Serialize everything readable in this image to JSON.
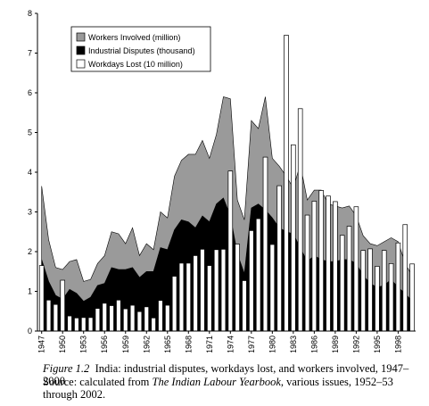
{
  "chart_data": {
    "type": "combo",
    "x": [
      1947,
      1948,
      1949,
      1950,
      1951,
      1952,
      1953,
      1954,
      1955,
      1956,
      1957,
      1958,
      1959,
      1960,
      1961,
      1962,
      1963,
      1964,
      1965,
      1966,
      1967,
      1968,
      1969,
      1970,
      1971,
      1972,
      1973,
      1974,
      1975,
      1976,
      1977,
      1978,
      1979,
      1980,
      1981,
      1982,
      1983,
      1984,
      1985,
      1986,
      1987,
      1988,
      1989,
      1990,
      1991,
      1992,
      1993,
      1994,
      1995,
      1996,
      1997,
      1998,
      1999,
      2000
    ],
    "series": [
      {
        "name": "Workers Involved (million)",
        "mark": "area",
        "color": "#9a9a9a",
        "values": [
          3.65,
          2.3,
          1.6,
          1.55,
          1.75,
          1.8,
          1.25,
          1.3,
          1.7,
          1.9,
          2.5,
          2.45,
          2.2,
          2.6,
          1.9,
          2.2,
          2.05,
          3.0,
          2.85,
          3.9,
          4.3,
          4.45,
          4.45,
          4.8,
          4.35,
          4.95,
          5.9,
          5.85,
          3.3,
          2.8,
          5.3,
          5.1,
          5.9,
          4.35,
          4.15,
          3.9,
          3.6,
          4.2,
          3.3,
          3.55,
          3.55,
          3.2,
          3.15,
          3.1,
          3.15,
          2.9,
          2.4,
          2.2,
          2.15,
          2.25,
          2.35,
          2.25,
          1.7,
          1.4
        ]
      },
      {
        "name": "Industrial Disputes (thousand)",
        "mark": "area",
        "color": "#000000",
        "values": [
          1.8,
          1.25,
          0.9,
          0.8,
          1.05,
          0.95,
          0.75,
          0.85,
          1.15,
          1.2,
          1.6,
          1.55,
          1.55,
          1.6,
          1.35,
          1.5,
          1.5,
          2.1,
          2.05,
          2.55,
          2.8,
          2.75,
          2.6,
          2.9,
          2.75,
          3.2,
          3.35,
          2.9,
          1.95,
          1.45,
          3.1,
          3.2,
          3.05,
          2.85,
          2.6,
          2.5,
          2.45,
          2.1,
          1.75,
          1.9,
          1.8,
          1.75,
          1.75,
          1.8,
          1.8,
          1.7,
          1.4,
          1.2,
          1.1,
          1.15,
          1.3,
          1.1,
          0.95,
          0.75
        ]
      },
      {
        "name": "Workdays Lost (10 million)",
        "mark": "bar",
        "color": "#ffffff",
        "values": [
          1.65,
          0.78,
          0.67,
          1.28,
          0.38,
          0.33,
          0.34,
          0.34,
          0.57,
          0.7,
          0.64,
          0.78,
          0.56,
          0.65,
          0.49,
          0.61,
          0.33,
          0.77,
          0.65,
          1.38,
          1.71,
          1.71,
          1.9,
          2.06,
          1.65,
          2.05,
          2.06,
          4.03,
          2.19,
          1.27,
          2.53,
          2.83,
          4.38,
          2.18,
          3.66,
          7.45,
          4.69,
          5.6,
          2.92,
          3.27,
          3.54,
          3.4,
          3.26,
          2.41,
          2.64,
          3.13,
          2.03,
          2.07,
          1.63,
          2.03,
          1.7,
          2.22,
          2.68,
          1.69
        ]
      }
    ],
    "xlim": [
      1946.4,
      2000.5
    ],
    "xticks": [
      1947,
      1950,
      1953,
      1956,
      1959,
      1962,
      1965,
      1968,
      1971,
      1974,
      1977,
      1980,
      1983,
      1986,
      1989,
      1992,
      1995,
      1998
    ],
    "ylim": [
      0,
      8
    ],
    "yticks": [
      0,
      1,
      2,
      3,
      4,
      5,
      6,
      7,
      8
    ],
    "legend": "upper left"
  },
  "caption": {
    "label": "Figure 1.2",
    "text": "India: industrial disputes, workdays lost, and workers involved, 1947–2000",
    "source_prefix": "Source: calculated from",
    "source_title": "The Indian Labour Yearbook",
    "source_suffix": ", various issues, 1952–53 through 2002."
  }
}
